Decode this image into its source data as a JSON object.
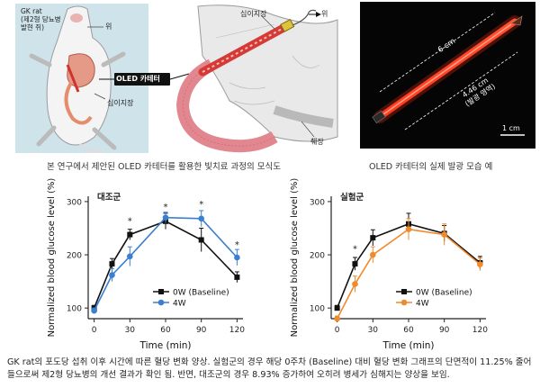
{
  "figure": {
    "labels": {
      "rat": "GK rat\n(제2형 당뇨병\n발현 쥐)",
      "stomach": "위",
      "catheter": "OLED 카테터",
      "duodenum_left": "십이지장",
      "duodenum_right": "십이지장",
      "stomach_right": "위",
      "pancreas": "췌장"
    },
    "photo": {
      "length": "6 cm",
      "emission_length": "4.46 cm",
      "emission_note": "(발광 영역)",
      "scale": "1 cm"
    },
    "caption_left": "본 연구에서 제안된 OLED 카테터를 활용한 빛치료 과정의 모식도",
    "caption_right": "OLED 카테터의 실제 발광 모습 예"
  },
  "body_text": "GK rat의 포도당 섭취 이후 시간에 따른 혈당 변화 양상. 실험군의 경우 해당 0주차 (Baseline) 대비 혈당 변화 그래프의 단면적이 11.25% 줄어들으로써 제2형 당뇨병의 개선 결과가 확인 됨. 반면, 대조군의 경우 8.93% 증가하여 오히려 병세가 심해지는 양상을 보임.",
  "chart_data": [
    {
      "type": "line",
      "panel_label": "대조군",
      "xlabel": "Time (min)",
      "ylabel": "Normalized blood glucose level (%)",
      "x": [
        0,
        15,
        30,
        60,
        90,
        120
      ],
      "xticks": [
        "0",
        "30",
        "60",
        "90",
        "120"
      ],
      "yticks": [
        "100",
        "200",
        "300"
      ],
      "xlim": [
        -5,
        125
      ],
      "ylim": [
        80,
        310
      ],
      "series": [
        {
          "name": "0W (Baseline)",
          "color": "#111111",
          "marker": "square",
          "values": [
            100,
            183,
            238,
            263,
            228,
            158
          ],
          "err": [
            5,
            10,
            10,
            15,
            22,
            10
          ]
        },
        {
          "name": "4W",
          "color": "#3b7fd0",
          "marker": "circle",
          "values": [
            95,
            162,
            197,
            270,
            268,
            195
          ],
          "err": [
            5,
            12,
            18,
            10,
            15,
            15
          ]
        }
      ],
      "annotations": [
        "*",
        "*",
        "*",
        "*"
      ]
    },
    {
      "type": "line",
      "panel_label": "실험군",
      "xlabel": "Time (min)",
      "ylabel": "Normalized blood glucose level (%)",
      "x": [
        0,
        15,
        30,
        60,
        90,
        120
      ],
      "xticks": [
        "0",
        "30",
        "60",
        "90",
        "120"
      ],
      "yticks": [
        "100",
        "200",
        "300"
      ],
      "xlim": [
        -5,
        125
      ],
      "ylim": [
        80,
        310
      ],
      "series": [
        {
          "name": "0W (Baseline)",
          "color": "#111111",
          "marker": "square",
          "values": [
            100,
            183,
            232,
            258,
            240,
            185
          ],
          "err": [
            5,
            12,
            15,
            20,
            15,
            12
          ]
        },
        {
          "name": "4W",
          "color": "#f08a2c",
          "marker": "circle",
          "values": [
            80,
            145,
            200,
            248,
            238,
            182
          ],
          "err": [
            5,
            15,
            15,
            20,
            20,
            12
          ]
        }
      ],
      "annotations": [
        "*"
      ]
    }
  ]
}
